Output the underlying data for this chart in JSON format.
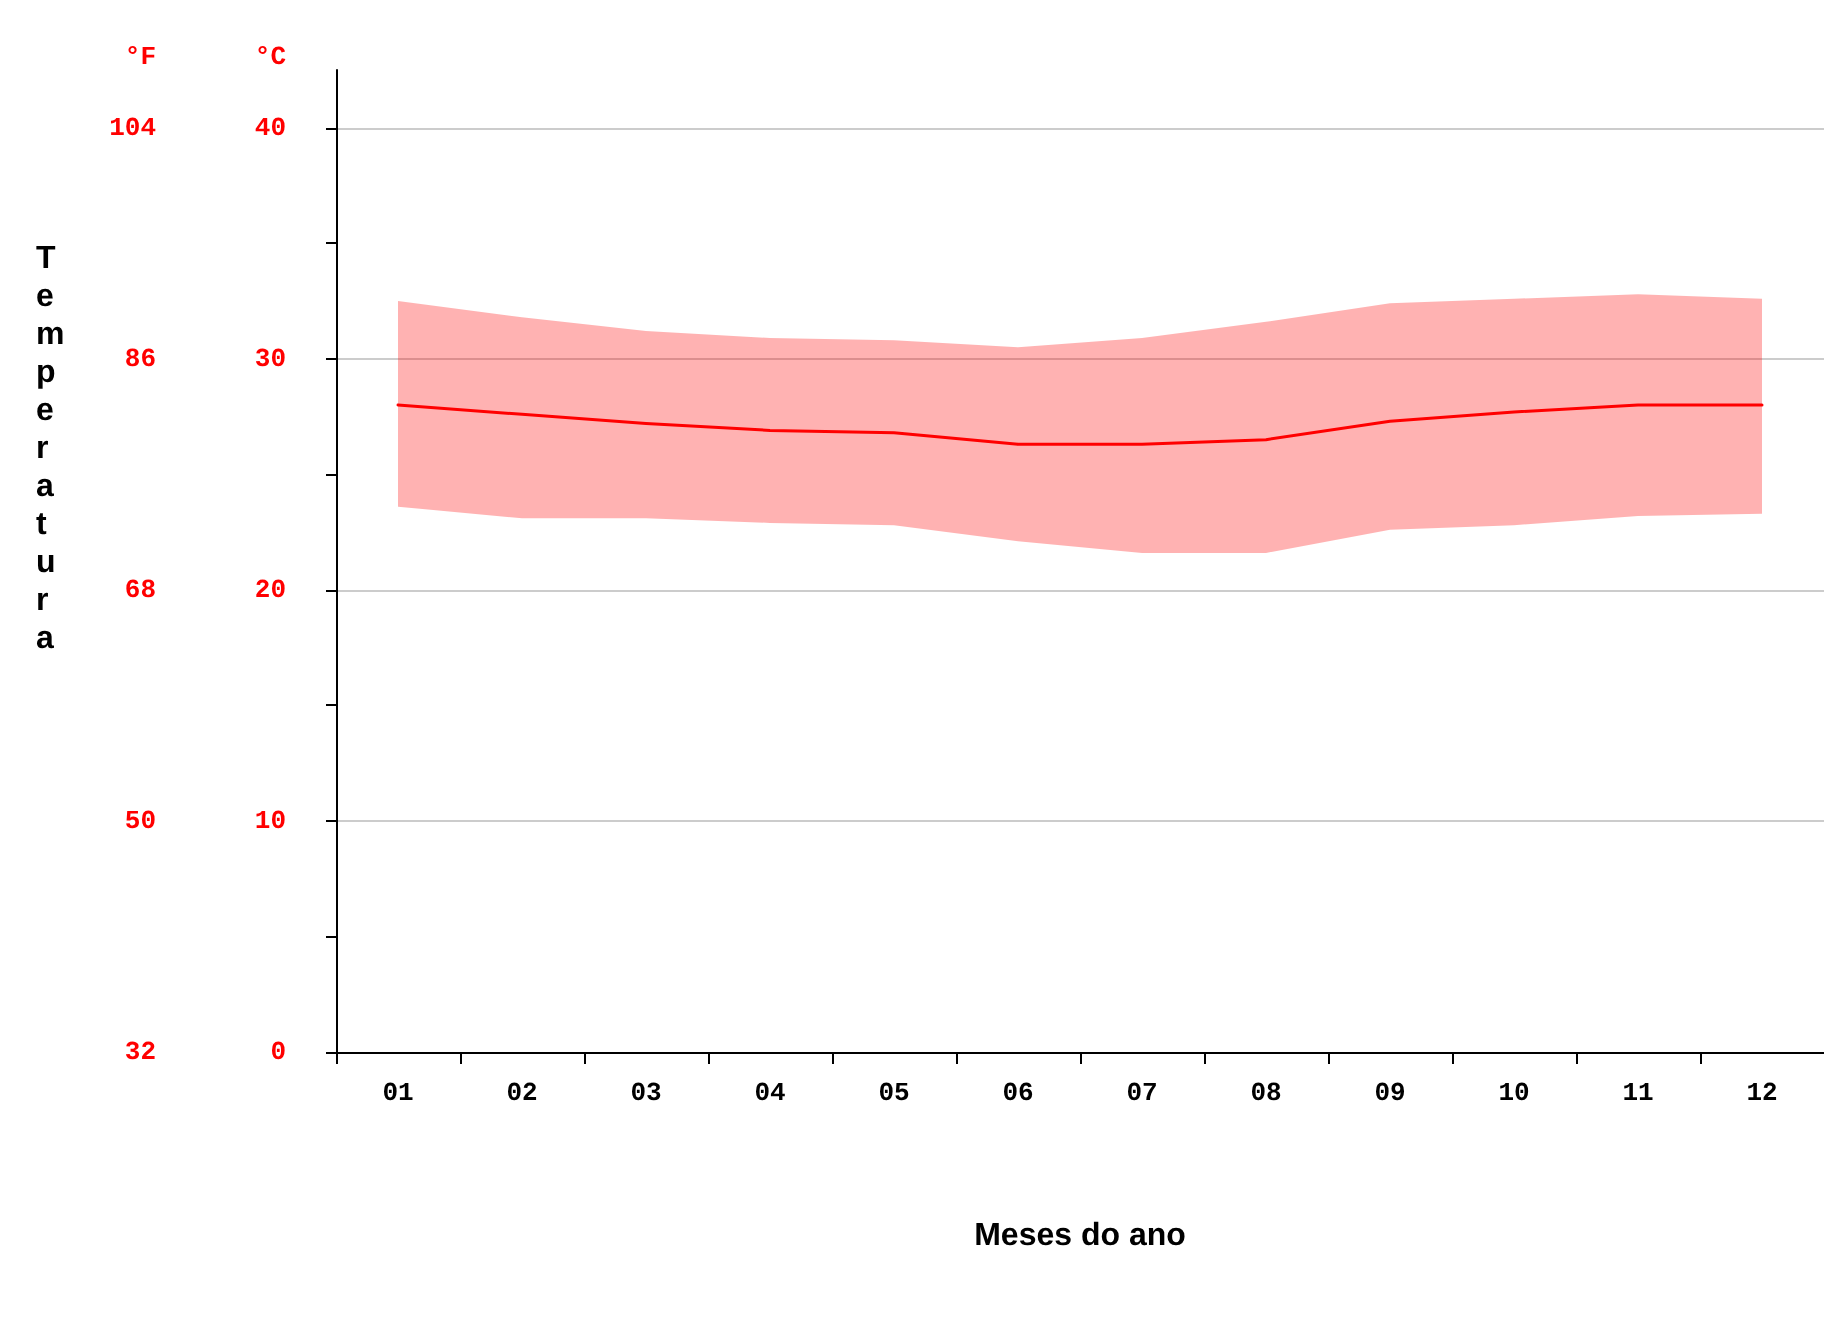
{
  "chart_data": {
    "type": "line",
    "ylabel": "°C",
    "y2label": "°F",
    "xlabel": "Meses do ano",
    "annotations": [
      "Temperatura"
    ],
    "categories": [
      "01",
      "02",
      "03",
      "04",
      "05",
      "06",
      "07",
      "08",
      "09",
      "10",
      "11",
      "12"
    ],
    "series": [
      {
        "color": "#ff0000",
        "values": [
          28.0,
          27.6,
          27.2,
          26.9,
          26.8,
          26.3,
          26.3,
          26.5,
          27.3,
          27.7,
          28.0,
          28.0
        ],
        "lower": [
          23.6,
          23.1,
          23.1,
          22.9,
          22.8,
          22.1,
          21.6,
          21.6,
          22.6,
          22.8,
          23.2,
          23.3
        ],
        "upper": [
          32.5,
          31.8,
          31.2,
          30.9,
          30.8,
          30.5,
          30.9,
          31.6,
          32.4,
          32.6,
          32.8,
          32.6
        ]
      }
    ],
    "ylim": [
      0,
      42.5
    ],
    "yticks": [
      0,
      {
        "value": 5,
        "label": null
      },
      10,
      {
        "value": 15,
        "label": null
      },
      20,
      {
        "value": 25,
        "label": null
      },
      30,
      {
        "value": 35,
        "label": null
      },
      40
    ],
    "y2lim": [
      32,
      108.5
    ],
    "y2ticks": [
      32,
      50,
      68,
      86,
      104
    ],
    "grid": "y",
    "marker": "none",
    "line_style": "solid"
  }
}
